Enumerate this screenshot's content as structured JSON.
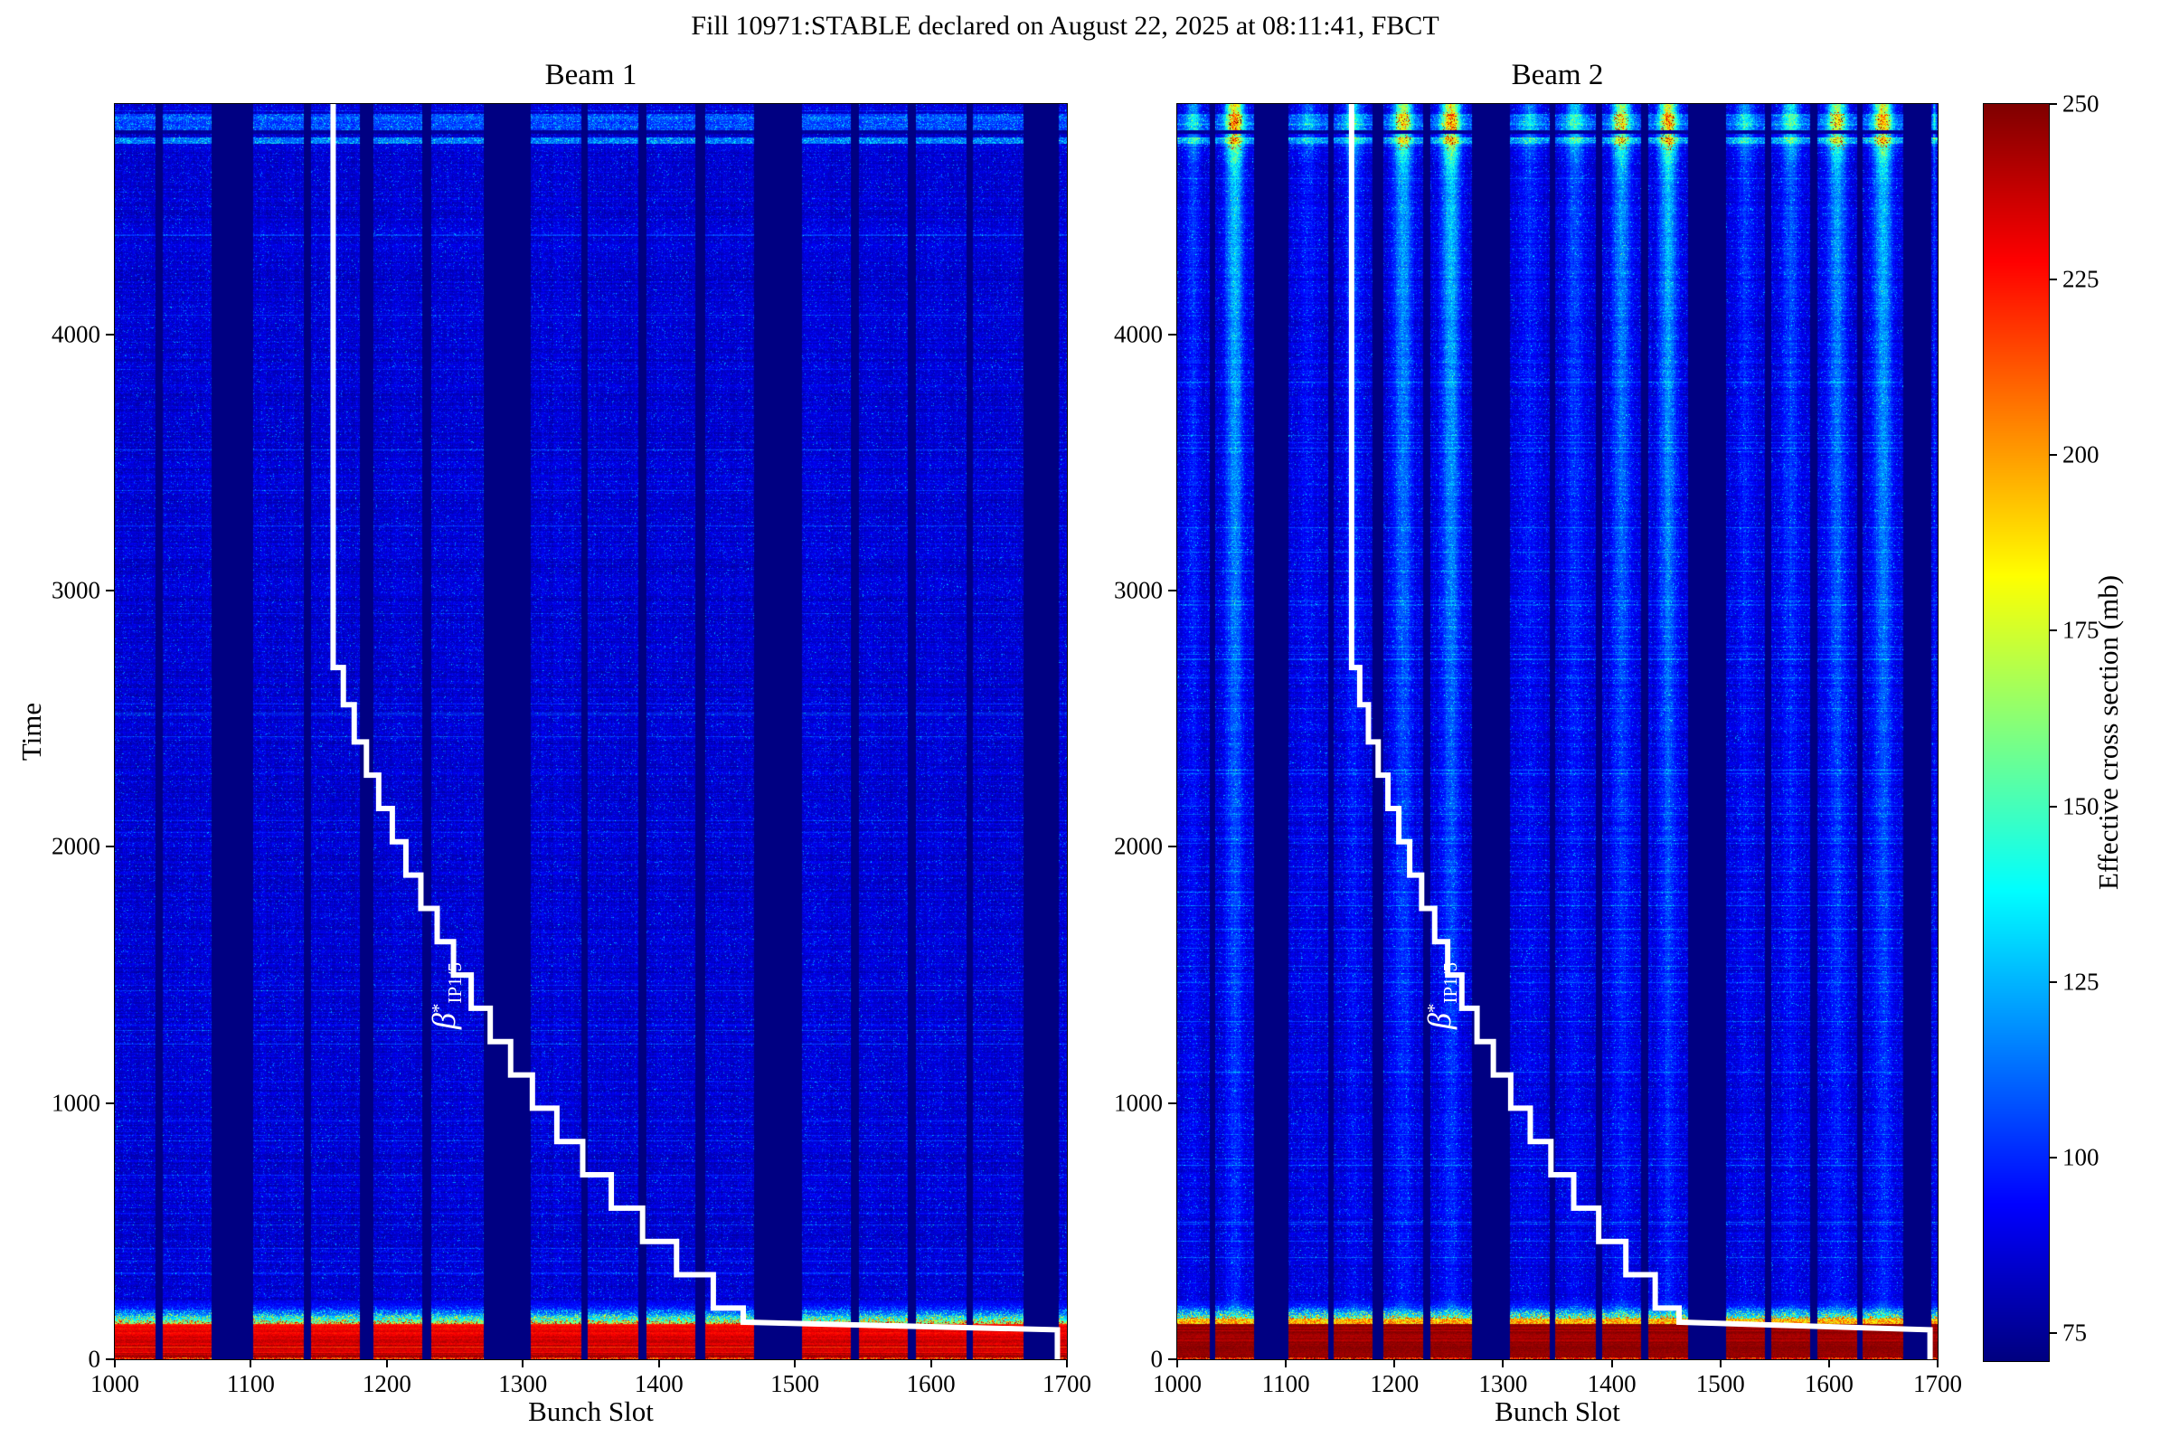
{
  "figure": {
    "suptitle": "Fill 10971:STABLE declared on August 22, 2025 at 08:11:41, FBCT",
    "background": "#ffffff"
  },
  "subplots": [
    {
      "id": "beam1",
      "title": "Beam 1",
      "xlabel": "Bunch Slot",
      "ylabel": "Time"
    },
    {
      "id": "beam2",
      "title": "Beam 2",
      "xlabel": "Bunch Slot"
    }
  ],
  "annotation": {
    "beta": "β",
    "sup": "*",
    "sub": "IP1/5",
    "color": "#ffffff",
    "slot": 1243,
    "time": 1420
  },
  "colorbar": {
    "label": "Effective cross section (mb)",
    "ticks": [
      75,
      100,
      125,
      150,
      175,
      200,
      225,
      250
    ],
    "vmin": 71,
    "vmax": 250,
    "colormap": "jet"
  },
  "chart_data": {
    "type": "heatmap",
    "title": "Fill 10971:STABLE declared on August 22, 2025 at 08:11:41, FBCT",
    "panels": [
      "Beam 1",
      "Beam 2"
    ],
    "x": {
      "label": "Bunch Slot",
      "min": 1000,
      "max": 1700,
      "ticks": [
        1000,
        1100,
        1200,
        1300,
        1400,
        1500,
        1600,
        1700
      ]
    },
    "y": {
      "label": "Time",
      "min": 0,
      "max": 4900,
      "ticks": [
        0,
        1000,
        2000,
        3000,
        4000
      ]
    },
    "value": {
      "label": "Effective cross section (mb)",
      "min": 71,
      "max": 250,
      "colormap": "jet",
      "colorbar_ticks": [
        75,
        100,
        125,
        150,
        175,
        200,
        225,
        250
      ]
    },
    "bunch_trains": [
      {
        "start": 1000,
        "end": 1030,
        "beam2_streak": 0.35
      },
      {
        "start": 1035,
        "end": 1071,
        "beam2_streak": 1.0
      },
      {
        "start": 1102,
        "end": 1139,
        "beam2_streak": 0.25
      },
      {
        "start": 1144,
        "end": 1180,
        "beam2_streak": 0.45
      },
      {
        "start": 1190,
        "end": 1226,
        "beam2_streak": 0.85
      },
      {
        "start": 1233,
        "end": 1271,
        "beam2_streak": 1.0
      },
      {
        "start": 1306,
        "end": 1343,
        "beam2_streak": 0.3
      },
      {
        "start": 1348,
        "end": 1385,
        "beam2_streak": 0.45
      },
      {
        "start": 1391,
        "end": 1427,
        "beam2_streak": 0.8
      },
      {
        "start": 1434,
        "end": 1470,
        "beam2_streak": 0.95
      },
      {
        "start": 1505,
        "end": 1541,
        "beam2_streak": 0.35
      },
      {
        "start": 1547,
        "end": 1583,
        "beam2_streak": 0.5
      },
      {
        "start": 1589,
        "end": 1626,
        "beam2_streak": 0.8
      },
      {
        "start": 1631,
        "end": 1668,
        "beam2_streak": 0.95
      },
      {
        "start": 1694,
        "end": 1700,
        "beam2_streak": 0.4
      }
    ],
    "empty_slot_value": 71.5,
    "body_value": {
      "beam1": 80,
      "beam2": 81
    },
    "bottom_band": {
      "time_range": [
        0,
        140
      ],
      "value": {
        "beam1": 238,
        "beam2": 246
      }
    },
    "transition_band": {
      "time_range": [
        140,
        230
      ]
    },
    "top_bright_bands": {
      "time_ranges": [
        [
          4745,
          4772
        ],
        [
          4795,
          4862
        ]
      ],
      "boost": [
        24,
        16
      ]
    },
    "dark_row": {
      "time_range": [
        4785,
        4800
      ]
    },
    "beam2_hotspots": {
      "time_range": [
        4720,
        4870
      ],
      "value_range": [
        205,
        250
      ]
    },
    "beta_star_step_line": {
      "label": "β*IP1/5",
      "color": "#ffffff",
      "points_slot_time": [
        [
          1160.5,
          4900
        ],
        [
          1160.5,
          2700
        ],
        [
          1168,
          2700
        ],
        [
          1168,
          2555
        ],
        [
          1176,
          2555
        ],
        [
          1176,
          2410
        ],
        [
          1185,
          2410
        ],
        [
          1185,
          2280
        ],
        [
          1194,
          2280
        ],
        [
          1194,
          2150
        ],
        [
          1204,
          2150
        ],
        [
          1204,
          2020
        ],
        [
          1214,
          2020
        ],
        [
          1214,
          1890
        ],
        [
          1225,
          1890
        ],
        [
          1225,
          1760
        ],
        [
          1237,
          1760
        ],
        [
          1237,
          1630
        ],
        [
          1249,
          1630
        ],
        [
          1249,
          1500
        ],
        [
          1262,
          1500
        ],
        [
          1262,
          1370
        ],
        [
          1276,
          1370
        ],
        [
          1276,
          1240
        ],
        [
          1291,
          1240
        ],
        [
          1291,
          1110
        ],
        [
          1307,
          1110
        ],
        [
          1307,
          980
        ],
        [
          1325,
          980
        ],
        [
          1325,
          850
        ],
        [
          1344,
          850
        ],
        [
          1344,
          720
        ],
        [
          1365,
          720
        ],
        [
          1365,
          590
        ],
        [
          1388,
          590
        ],
        [
          1388,
          460
        ],
        [
          1413,
          460
        ],
        [
          1413,
          330
        ],
        [
          1440,
          330
        ],
        [
          1440,
          200
        ],
        [
          1462,
          200
        ],
        [
          1462,
          145
        ],
        [
          1693,
          115
        ],
        [
          1693,
          0
        ]
      ]
    }
  }
}
